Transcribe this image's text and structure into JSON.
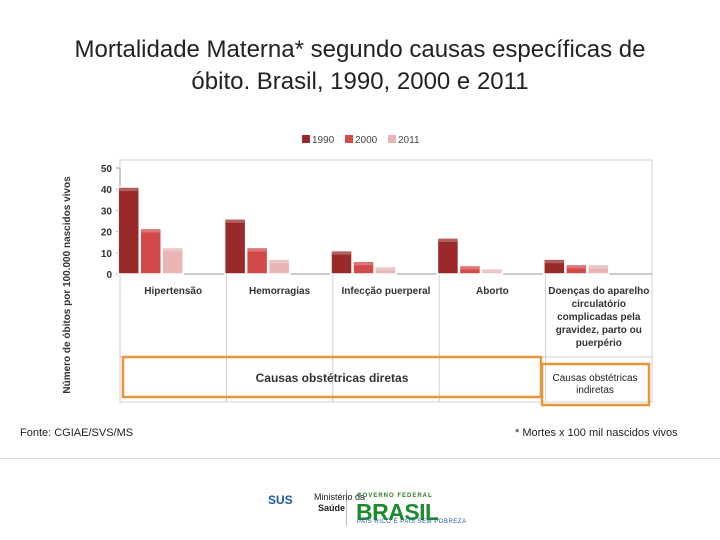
{
  "title_line1": "Mortalidade Materna* segundo causas específicas de",
  "title_line2": "óbito. Brasil, 1990, 2000 e 2011",
  "chart_data": {
    "type": "bar",
    "categories": [
      "Hipertensão",
      "Hemorragias",
      "Infecção puerperal",
      "Aborto",
      "Doenças do aparelho circulatório complicadas pela gravidez, parto ou puerpério"
    ],
    "category_lines": [
      [
        "Hipertensão"
      ],
      [
        "Hemorragias"
      ],
      [
        "Infecção puerperal"
      ],
      [
        "Aborto"
      ],
      [
        "Doenças do aparelho",
        "circulatório",
        "complicadas pela",
        "gravidez, parto ou",
        "puerpério"
      ]
    ],
    "series": [
      {
        "name": "1990",
        "values": [
          41,
          26,
          11,
          17,
          7
        ],
        "color": "#9a2a2a"
      },
      {
        "name": "2000",
        "values": [
          21.5,
          12.5,
          6,
          4,
          4.5
        ],
        "color": "#d24a4a"
      },
      {
        "name": "2011",
        "values": [
          12.5,
          7,
          3.5,
          2.5,
          4.5
        ],
        "color": "#e8b4b4"
      }
    ],
    "yticks": [
      0,
      10,
      20,
      30,
      40,
      50
    ],
    "ylim": [
      0,
      50
    ],
    "ylabel": "Número de óbitos por 100.000 nascidos vivos",
    "xlabel": "",
    "legend_position": "top",
    "grid": false,
    "group_direct_label": "Causas obstétricas diretas",
    "group_indirect_label_lines": [
      "Causas obstétricas",
      "indiretas"
    ]
  },
  "footer_source": "Fonte: CGIAE/SVS/MS",
  "footer_note": "* Mortes x 100 mil nascidos vivos",
  "logos": {
    "sus": "SUS",
    "ministerio_line1": "Ministério da",
    "ministerio_line2": "Saúde",
    "gov": "GOVERNO FEDERAL",
    "brasil": "BRASIL",
    "motto": "PAÍS RICO É PAÍS SEM POBREZA"
  }
}
